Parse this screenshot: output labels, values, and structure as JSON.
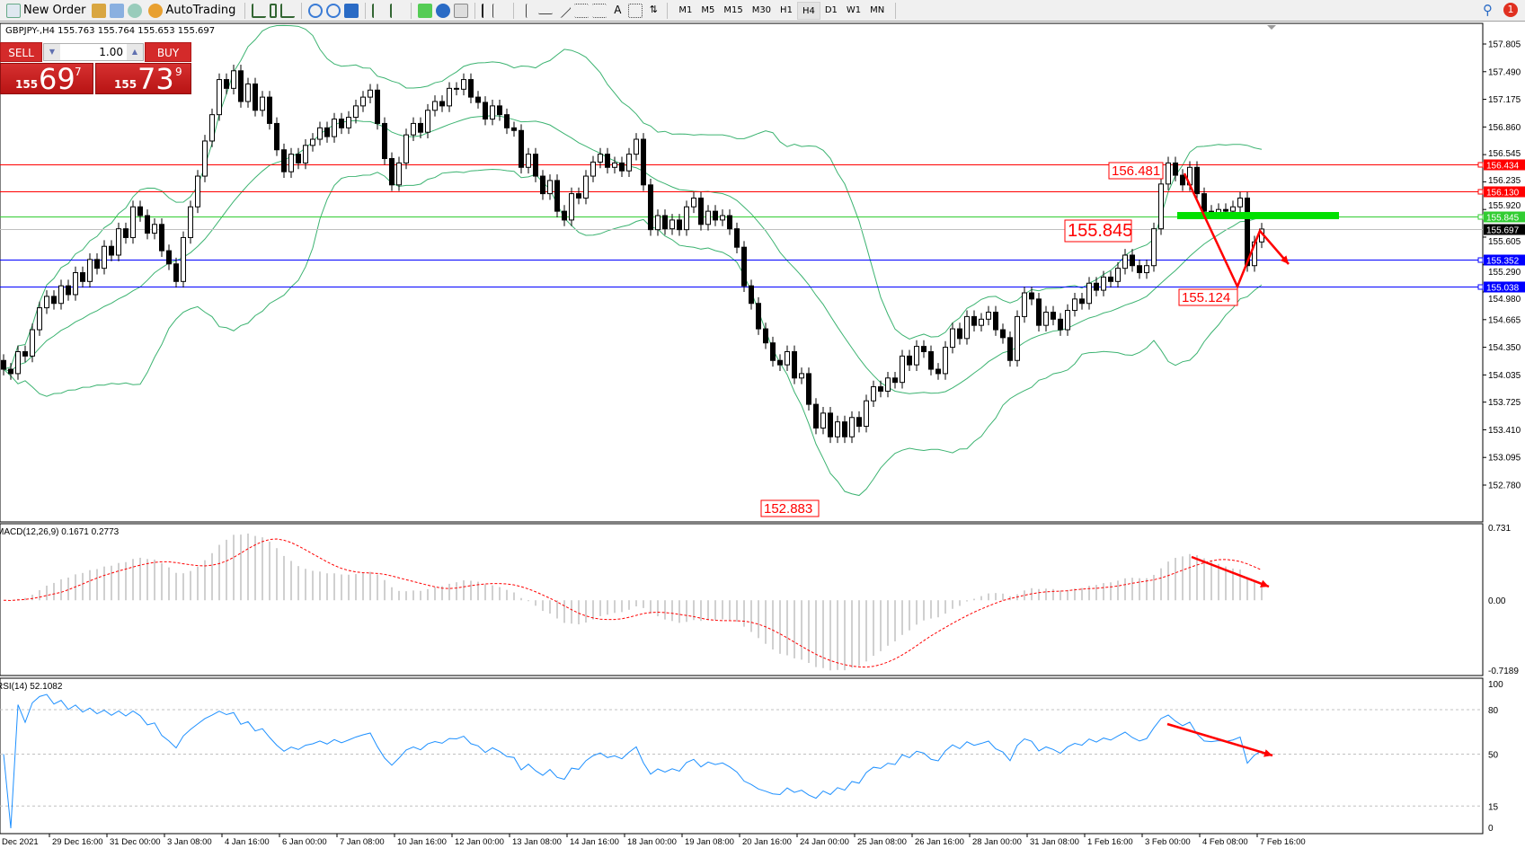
{
  "toolbar": {
    "new_order": "New Order",
    "auto_trading": "AutoTrading",
    "timeframes": [
      "M1",
      "M5",
      "M15",
      "M30",
      "H1",
      "H4",
      "D1",
      "W1",
      "MN"
    ],
    "active_timeframe": "H4",
    "notifications": "1"
  },
  "header": "GBPJPY-,H4  155.763 155.764 155.653 155.697",
  "trade_panel": {
    "sell": "SELL",
    "buy": "BUY",
    "lot": "1.00",
    "bid": {
      "big": "155",
      "main": "69",
      "sup": "7"
    },
    "ask": {
      "big": "155",
      "main": "73",
      "sup": "9"
    }
  },
  "colors": {
    "bull": "#ffffff",
    "bear": "#000000",
    "bands": "#3cb371",
    "macd_hist": "#c0c0c0",
    "macd_signal": "#ff0000",
    "rsi": "#1e90ff",
    "accent_green": "#00e000",
    "arrow": "#ff0000"
  },
  "chart_data": {
    "type": "candlestick",
    "symbol": "GBPJPY-",
    "timeframe": "H4",
    "ylim": [
      152.78,
      157.805
    ],
    "price_ticks": [
      "157.805",
      "157.490",
      "157.175",
      "156.860",
      "156.545",
      "156.235",
      "155.920",
      "155.605",
      "155.290",
      "154.980",
      "154.665",
      "154.350",
      "154.035",
      "153.725",
      "153.410",
      "153.095",
      "152.780"
    ],
    "time_labels": [
      "Dec 2021",
      "29 Dec 16:00",
      "31 Dec 00:00",
      "3 Jan 08:00",
      "4 Jan 16:00",
      "6 Jan 00:00",
      "7 Jan 08:00",
      "10 Jan 16:00",
      "12 Jan 00:00",
      "13 Jan 08:00",
      "14 Jan 16:00",
      "18 Jan 00:00",
      "19 Jan 08:00",
      "20 Jan 16:00",
      "24 Jan 00:00",
      "25 Jan 08:00",
      "26 Jan 16:00",
      "28 Jan 00:00",
      "31 Jan 08:00",
      "1 Feb 16:00",
      "3 Feb 00:00",
      "4 Feb 08:00",
      "7 Feb 16:00"
    ],
    "open_first": 154.2,
    "close": [
      154.1,
      154.05,
      154.3,
      154.25,
      154.55,
      154.8,
      154.93,
      154.85,
      155.05,
      154.95,
      155.2,
      155.1,
      155.35,
      155.25,
      155.5,
      155.4,
      155.7,
      155.6,
      155.95,
      155.85,
      155.65,
      155.75,
      155.45,
      155.3,
      155.1,
      155.6,
      155.95,
      156.3,
      156.7,
      157.0,
      157.4,
      157.3,
      157.5,
      157.15,
      157.35,
      157.05,
      157.2,
      156.9,
      156.6,
      156.35,
      156.55,
      156.45,
      156.65,
      156.72,
      156.85,
      156.75,
      156.95,
      156.85,
      156.97,
      157.1,
      157.2,
      157.28,
      156.9,
      156.5,
      156.2,
      156.45,
      156.77,
      156.9,
      156.8,
      157.05,
      157.15,
      157.1,
      157.3,
      157.29,
      157.4,
      157.2,
      157.14,
      156.95,
      157.1,
      157.0,
      156.85,
      156.82,
      156.4,
      156.55,
      156.3,
      156.1,
      156.25,
      155.9,
      155.8,
      156.1,
      156.05,
      156.3,
      156.46,
      156.55,
      156.4,
      156.45,
      156.36,
      156.55,
      156.72,
      156.2,
      155.69,
      155.85,
      155.7,
      155.8,
      155.69,
      155.95,
      156.05,
      155.75,
      155.9,
      155.8,
      155.85,
      155.7,
      155.49,
      155.05,
      154.85,
      154.56,
      154.4,
      154.2,
      154.15,
      154.3,
      154.0,
      154.05,
      153.7,
      153.43,
      153.6,
      153.33,
      153.5,
      153.33,
      153.55,
      153.45,
      153.74,
      153.9,
      153.85,
      154.0,
      153.95,
      154.25,
      154.15,
      154.36,
      154.3,
      154.1,
      154.05,
      154.35,
      154.56,
      154.45,
      154.7,
      154.6,
      154.67,
      154.75,
      154.55,
      154.46,
      154.2,
      154.7,
      154.97,
      154.9,
      154.6,
      154.75,
      154.67,
      154.55,
      154.77,
      154.9,
      154.85,
      155.08,
      155.0,
      155.15,
      155.1,
      155.25,
      155.4,
      155.28,
      155.2,
      155.28,
      155.7,
      156.21,
      156.45,
      156.31,
      156.2,
      156.4,
      156.1,
      155.9,
      155.88,
      155.92,
      155.9,
      155.95,
      156.05,
      155.28,
      155.55,
      155.697
    ],
    "horizontal_lines": [
      {
        "price": "156.434",
        "color": "#ff0000"
      },
      {
        "price": "156.130",
        "color": "#ff0000"
      },
      {
        "price": "155.845",
        "color": "#32cd32"
      },
      {
        "price": "155.697",
        "color": "#000000",
        "line": "#c0c0c0"
      },
      {
        "price": "155.352",
        "color": "#0000ff"
      },
      {
        "price": "155.038",
        "color": "#0000ff"
      }
    ],
    "price_labels": [
      "156.481",
      "155.845",
      "155.124",
      "152.883"
    ],
    "bollinger": {
      "period": 20,
      "deviation": 2
    },
    "macd": {
      "label": "MACD(12,26,9) 0.1671 0.2773",
      "ticks": [
        "0.731",
        "0.00",
        "-0.7189"
      ],
      "ylim": [
        -0.7189,
        0.731
      ]
    },
    "rsi": {
      "label": "RSI(14) 52.1082",
      "ticks": [
        "100",
        "80",
        "50",
        "15",
        "0"
      ],
      "levels": [
        80,
        50,
        15
      ],
      "ylim": [
        0,
        100
      ]
    }
  }
}
